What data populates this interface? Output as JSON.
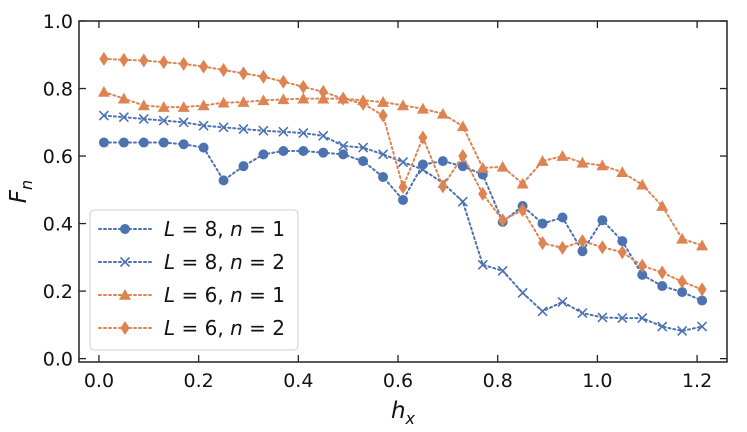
{
  "chart_data": {
    "type": "line",
    "title": "",
    "xlabel": "h",
    "xlabel_sub": "x",
    "ylabel": "F",
    "ylabel_sub": "n",
    "xlim": [
      -0.04,
      1.26
    ],
    "ylim": [
      -0.01,
      1.0
    ],
    "xticks": [
      0.0,
      0.2,
      0.4,
      0.6,
      0.8,
      1.0,
      1.2
    ],
    "xtick_labels": [
      "0.0",
      "0.2",
      "0.4",
      "0.6",
      "0.8",
      "1.0",
      "1.2"
    ],
    "yticks": [
      0.0,
      0.2,
      0.4,
      0.6,
      0.8,
      1.0
    ],
    "ytick_labels": [
      "0.0",
      "0.2",
      "0.4",
      "0.6",
      "0.8",
      "1.0"
    ],
    "grid": false,
    "legend_position": "bottom-left",
    "x": [
      0.01,
      0.05,
      0.09,
      0.13,
      0.17,
      0.21,
      0.25,
      0.29,
      0.33,
      0.37,
      0.41,
      0.45,
      0.49,
      0.53,
      0.57,
      0.61,
      0.65,
      0.69,
      0.73,
      0.77,
      0.81,
      0.85,
      0.89,
      0.93,
      0.97,
      1.01,
      1.05,
      1.09,
      1.13,
      1.17,
      1.21
    ],
    "series": [
      {
        "name": "L = 8, n = 1",
        "legend": {
          "L": "L",
          "L_val": "8",
          "n": "n",
          "n_val": "1"
        },
        "color": "#4c72b0",
        "marker": "circle",
        "values": [
          0.64,
          0.64,
          0.64,
          0.64,
          0.635,
          0.625,
          0.528,
          0.57,
          0.605,
          0.615,
          0.615,
          0.61,
          0.605,
          0.585,
          0.538,
          0.47,
          0.575,
          0.585,
          0.57,
          0.545,
          0.405,
          0.452,
          0.4,
          0.418,
          0.318,
          0.41,
          0.348,
          0.248,
          0.215,
          0.197,
          0.172
        ]
      },
      {
        "name": "L = 8, n = 2",
        "legend": {
          "L": "L",
          "L_val": "8",
          "n": "n",
          "n_val": "2"
        },
        "color": "#4c72b0",
        "marker": "x",
        "values": [
          0.72,
          0.715,
          0.71,
          0.705,
          0.7,
          0.69,
          0.685,
          0.68,
          0.675,
          0.672,
          0.668,
          0.66,
          0.63,
          0.625,
          0.605,
          0.582,
          0.56,
          0.52,
          0.465,
          0.278,
          0.26,
          0.195,
          0.14,
          0.168,
          0.135,
          0.122,
          0.12,
          0.12,
          0.095,
          0.082,
          0.095
        ]
      },
      {
        "name": "L = 6, n = 1",
        "legend": {
          "L": "L",
          "L_val": "6",
          "n": "n",
          "n_val": "1"
        },
        "color": "#dd8452",
        "marker": "triangle",
        "values": [
          0.79,
          0.77,
          0.75,
          0.745,
          0.745,
          0.75,
          0.758,
          0.76,
          0.765,
          0.768,
          0.77,
          0.77,
          0.77,
          0.765,
          0.76,
          0.75,
          0.74,
          0.725,
          0.688,
          0.565,
          0.568,
          0.518,
          0.585,
          0.6,
          0.58,
          0.572,
          0.552,
          0.515,
          0.452,
          0.355,
          0.335
        ]
      },
      {
        "name": "L = 6, n = 2",
        "legend": {
          "L": "L",
          "L_val": "6",
          "n": "n",
          "n_val": "2"
        },
        "color": "#dd8452",
        "marker": "diamond",
        "values": [
          0.888,
          0.885,
          0.883,
          0.878,
          0.873,
          0.865,
          0.855,
          0.845,
          0.835,
          0.82,
          0.805,
          0.79,
          0.77,
          0.755,
          0.72,
          0.508,
          0.655,
          0.51,
          0.6,
          0.488,
          0.41,
          0.44,
          0.342,
          0.328,
          0.348,
          0.33,
          0.315,
          0.275,
          0.255,
          0.228,
          0.205
        ]
      }
    ]
  }
}
